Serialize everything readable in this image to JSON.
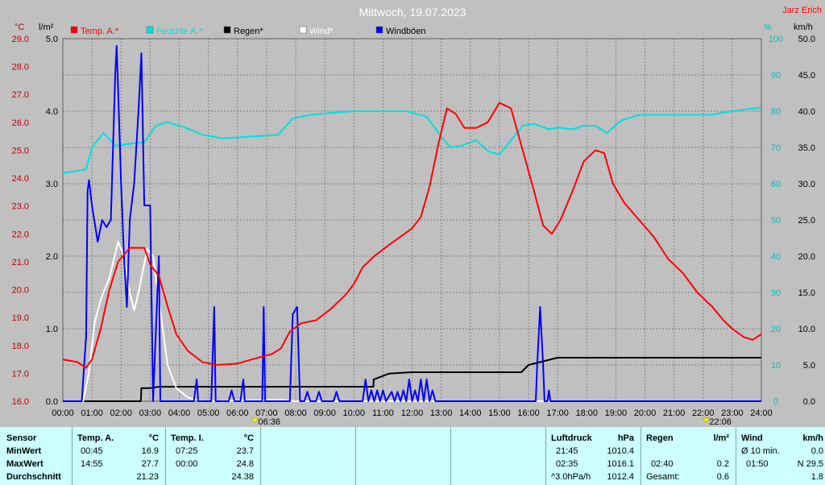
{
  "title": "Mittwoch, 19.07.2023",
  "author": "Jarz Erich",
  "colors": {
    "bg": "#c0c0c0",
    "plot_bg": "#c0c0c0",
    "grid": "#808080",
    "temp": "#ff0000",
    "feuchte": "#00e0e0",
    "regen": "#000000",
    "wind": "#ffffff",
    "boeen": "#0000ff",
    "left_axis": "#c00000",
    "right_axis": "#00c0c0"
  },
  "axis_units": {
    "left_temp": "°C",
    "left_rain": "l/m²",
    "right_hum": "%",
    "right_wind": "km/h"
  },
  "chart_data": {
    "type": "line",
    "x_unit": "hours",
    "xlim": [
      0,
      24
    ],
    "x_ticks": [
      "00:00",
      "01:00",
      "02:00",
      "03:00",
      "04:00",
      "05:00",
      "06:00",
      "07:00",
      "08:00",
      "09:00",
      "10:00",
      "11:00",
      "12:00",
      "13:00",
      "14:00",
      "15:00",
      "16:00",
      "17:00",
      "18:00",
      "19:00",
      "20:00",
      "21:00",
      "22:00",
      "23:00",
      "24:00"
    ],
    "temp_axis": {
      "range": [
        16.0,
        29.0
      ],
      "ticks": [
        "16.0",
        "17.0",
        "18.0",
        "19.0",
        "20.0",
        "21.0",
        "22.0",
        "23.0",
        "24.0",
        "25.0",
        "26.0",
        "27.0",
        "28.0",
        "29.0"
      ]
    },
    "rain_axis": {
      "range": [
        0.0,
        5.0
      ],
      "ticks": [
        "0.0",
        "1.0",
        "2.0",
        "3.0",
        "4.0",
        "5.0"
      ]
    },
    "hum_axis": {
      "range": [
        0,
        100
      ],
      "ticks": [
        "0",
        "10",
        "20",
        "30",
        "40",
        "50",
        "60",
        "70",
        "80",
        "90",
        "100"
      ]
    },
    "wind_axis": {
      "range": [
        0.0,
        50.0
      ],
      "ticks": [
        "0.0",
        "5.0",
        "10.0",
        "15.0",
        "20.0",
        "25.0",
        "30.0",
        "35.0",
        "40.0",
        "45.0",
        "50.0"
      ]
    },
    "sunrise": "06:36",
    "sunset": "22:06",
    "sunrise_h": 6.6,
    "sunset_h": 22.1,
    "series": [
      {
        "name": "Temp. A.*",
        "axis": "temp",
        "color": "#ff0000",
        "points": [
          [
            0,
            17.5
          ],
          [
            0.5,
            17.4
          ],
          [
            0.8,
            17.2
          ],
          [
            1.0,
            17.5
          ],
          [
            1.3,
            18.6
          ],
          [
            1.6,
            20.0
          ],
          [
            1.9,
            21.0
          ],
          [
            2.3,
            21.5
          ],
          [
            2.6,
            21.5
          ],
          [
            2.8,
            21.5
          ],
          [
            3.0,
            20.9
          ],
          [
            3.3,
            20.5
          ],
          [
            3.6,
            19.4
          ],
          [
            3.9,
            18.4
          ],
          [
            4.3,
            17.8
          ],
          [
            4.8,
            17.4
          ],
          [
            5.3,
            17.3
          ],
          [
            6.0,
            17.35
          ],
          [
            6.5,
            17.5
          ],
          [
            7.2,
            17.7
          ],
          [
            7.5,
            17.9
          ],
          [
            7.8,
            18.5
          ],
          [
            8.2,
            18.8
          ],
          [
            8.7,
            18.9
          ],
          [
            9.2,
            19.3
          ],
          [
            9.7,
            19.8
          ],
          [
            10.0,
            20.2
          ],
          [
            10.3,
            20.8
          ],
          [
            10.7,
            21.2
          ],
          [
            11.2,
            21.6
          ],
          [
            11.6,
            21.9
          ],
          [
            12.0,
            22.2
          ],
          [
            12.3,
            22.6
          ],
          [
            12.6,
            23.7
          ],
          [
            12.9,
            25.2
          ],
          [
            13.2,
            26.5
          ],
          [
            13.5,
            26.3
          ],
          [
            13.8,
            25.8
          ],
          [
            14.2,
            25.8
          ],
          [
            14.6,
            26.0
          ],
          [
            15.0,
            26.7
          ],
          [
            15.4,
            26.5
          ],
          [
            15.8,
            25.0
          ],
          [
            16.2,
            23.5
          ],
          [
            16.5,
            22.3
          ],
          [
            16.8,
            22.0
          ],
          [
            17.1,
            22.5
          ],
          [
            17.5,
            23.5
          ],
          [
            17.9,
            24.6
          ],
          [
            18.3,
            25.0
          ],
          [
            18.6,
            24.9
          ],
          [
            18.9,
            23.8
          ],
          [
            19.3,
            23.1
          ],
          [
            19.8,
            22.5
          ],
          [
            20.3,
            21.9
          ],
          [
            20.8,
            21.1
          ],
          [
            21.3,
            20.6
          ],
          [
            21.8,
            19.9
          ],
          [
            22.3,
            19.4
          ],
          [
            22.7,
            18.9
          ],
          [
            23.0,
            18.6
          ],
          [
            23.4,
            18.3
          ],
          [
            23.7,
            18.2
          ],
          [
            24.0,
            18.4
          ]
        ]
      },
      {
        "name": "Feuchte A.*",
        "axis": "hum",
        "color": "#00e0e0",
        "points": [
          [
            0,
            63
          ],
          [
            0.5,
            63.5
          ],
          [
            0.8,
            64
          ],
          [
            1.0,
            70
          ],
          [
            1.4,
            74
          ],
          [
            1.8,
            70.5
          ],
          [
            2.3,
            71
          ],
          [
            2.8,
            71.5
          ],
          [
            3.2,
            76
          ],
          [
            3.6,
            77
          ],
          [
            4.2,
            75.5
          ],
          [
            4.8,
            73.5
          ],
          [
            5.5,
            72.5
          ],
          [
            6.5,
            73
          ],
          [
            7.4,
            73.5
          ],
          [
            7.9,
            78
          ],
          [
            8.5,
            79
          ],
          [
            9.2,
            79.5
          ],
          [
            10.0,
            80
          ],
          [
            11.0,
            80
          ],
          [
            11.8,
            80
          ],
          [
            12.5,
            78.5
          ],
          [
            13.0,
            73
          ],
          [
            13.3,
            70
          ],
          [
            13.7,
            70.5
          ],
          [
            14.2,
            72
          ],
          [
            14.6,
            69
          ],
          [
            15.0,
            68
          ],
          [
            15.4,
            72
          ],
          [
            15.8,
            76
          ],
          [
            16.2,
            76.5
          ],
          [
            16.7,
            75
          ],
          [
            17.0,
            75.5
          ],
          [
            17.5,
            75
          ],
          [
            17.9,
            76
          ],
          [
            18.3,
            76
          ],
          [
            18.7,
            74
          ],
          [
            19.2,
            77.5
          ],
          [
            19.8,
            79
          ],
          [
            20.5,
            79
          ],
          [
            21.5,
            79
          ],
          [
            22.3,
            79
          ],
          [
            23.0,
            80
          ],
          [
            24.0,
            81
          ]
        ]
      },
      {
        "name": "Regen*",
        "axis": "rain",
        "color": "#000000",
        "points": [
          [
            0,
            0
          ],
          [
            2.68,
            0
          ],
          [
            2.7,
            0.18
          ],
          [
            3.0,
            0.18
          ],
          [
            3.3,
            0.2
          ],
          [
            4.0,
            0.2
          ],
          [
            10.67,
            0.2
          ],
          [
            10.68,
            0.3
          ],
          [
            11.2,
            0.38
          ],
          [
            12,
            0.4
          ],
          [
            15.75,
            0.4
          ],
          [
            16.0,
            0.5
          ],
          [
            16.5,
            0.55
          ],
          [
            17.0,
            0.6
          ],
          [
            24.0,
            0.6
          ]
        ]
      },
      {
        "name": "Wind*",
        "axis": "wind",
        "color": "#ffffff",
        "points": [
          [
            0,
            0
          ],
          [
            0.7,
            0
          ],
          [
            0.9,
            4
          ],
          [
            1.1,
            11
          ],
          [
            1.3,
            14
          ],
          [
            1.6,
            17
          ],
          [
            1.9,
            22
          ],
          [
            2.1,
            20
          ],
          [
            2.3,
            15
          ],
          [
            2.45,
            12.5
          ],
          [
            2.6,
            15
          ],
          [
            2.9,
            21
          ],
          [
            3.1,
            20
          ],
          [
            3.4,
            11
          ],
          [
            3.6,
            5
          ],
          [
            3.9,
            1.8
          ],
          [
            4.3,
            0.5
          ],
          [
            4.8,
            0
          ],
          [
            7.5,
            0.2
          ],
          [
            8.0,
            0
          ],
          [
            24.0,
            0
          ]
        ]
      },
      {
        "name": "Windböen",
        "axis": "wind",
        "color": "#0000ff",
        "points": [
          [
            0,
            0
          ],
          [
            0.65,
            0
          ],
          [
            0.8,
            9
          ],
          [
            0.85,
            29
          ],
          [
            0.9,
            30.5
          ],
          [
            1.0,
            27
          ],
          [
            1.2,
            22
          ],
          [
            1.35,
            25
          ],
          [
            1.5,
            24
          ],
          [
            1.65,
            25
          ],
          [
            1.8,
            45
          ],
          [
            1.85,
            49
          ],
          [
            1.9,
            43
          ],
          [
            2.0,
            30
          ],
          [
            2.1,
            20
          ],
          [
            2.2,
            13
          ],
          [
            2.3,
            25
          ],
          [
            2.45,
            30
          ],
          [
            2.6,
            40
          ],
          [
            2.7,
            48
          ],
          [
            2.8,
            27
          ],
          [
            3.0,
            27
          ],
          [
            3.1,
            0
          ],
          [
            3.3,
            20
          ],
          [
            3.35,
            0
          ],
          [
            4.5,
            0
          ],
          [
            4.6,
            3
          ],
          [
            4.65,
            0
          ],
          [
            5.1,
            0
          ],
          [
            5.2,
            13
          ],
          [
            5.25,
            0
          ],
          [
            5.7,
            0
          ],
          [
            5.8,
            1.5
          ],
          [
            5.9,
            0
          ],
          [
            6.1,
            0
          ],
          [
            6.2,
            3
          ],
          [
            6.25,
            0
          ],
          [
            6.85,
            0
          ],
          [
            6.9,
            13
          ],
          [
            6.95,
            0
          ],
          [
            7.8,
            0
          ],
          [
            7.9,
            12
          ],
          [
            8.05,
            13
          ],
          [
            8.15,
            0
          ],
          [
            8.3,
            0
          ],
          [
            8.4,
            1.3
          ],
          [
            8.5,
            0
          ],
          [
            8.7,
            0
          ],
          [
            8.8,
            1.3
          ],
          [
            8.9,
            0
          ],
          [
            9.3,
            0
          ],
          [
            9.4,
            1.3
          ],
          [
            9.5,
            0
          ],
          [
            10.3,
            0
          ],
          [
            10.4,
            3
          ],
          [
            10.5,
            0
          ],
          [
            10.6,
            1.5
          ],
          [
            10.7,
            0
          ],
          [
            10.8,
            1.5
          ],
          [
            10.9,
            0
          ],
          [
            11.0,
            1.5
          ],
          [
            11.1,
            0
          ],
          [
            11.3,
            1.3
          ],
          [
            11.4,
            0
          ],
          [
            11.5,
            1.3
          ],
          [
            11.6,
            0
          ],
          [
            11.7,
            1.5
          ],
          [
            11.8,
            0
          ],
          [
            11.9,
            3
          ],
          [
            12.0,
            0
          ],
          [
            12.1,
            1.5
          ],
          [
            12.2,
            0
          ],
          [
            12.3,
            3
          ],
          [
            12.4,
            0
          ],
          [
            12.5,
            3
          ],
          [
            12.6,
            0
          ],
          [
            12.7,
            1.5
          ],
          [
            12.8,
            0
          ],
          [
            16.25,
            0
          ],
          [
            16.3,
            5
          ],
          [
            16.4,
            13
          ],
          [
            16.5,
            5
          ],
          [
            16.55,
            0
          ],
          [
            16.65,
            0
          ],
          [
            16.7,
            1.5
          ],
          [
            16.75,
            0
          ],
          [
            24,
            0
          ]
        ]
      }
    ],
    "legend_placement": "top"
  },
  "stats": {
    "sensor": {
      "header": "Sensor",
      "rows": [
        "MinWert",
        "MaxWert",
        "Durchschnitt"
      ]
    },
    "temp_a": {
      "header": "Temp. A.",
      "unit": "°C",
      "rows": [
        [
          "00:45",
          "16.9"
        ],
        [
          "14:55",
          "27.7"
        ],
        [
          "",
          "21.23"
        ]
      ]
    },
    "temp_i": {
      "header": "Temp. I.",
      "unit": "°C",
      "rows": [
        [
          "07:25",
          "23.7"
        ],
        [
          "00:00",
          "24.8"
        ],
        [
          "",
          "24.38"
        ]
      ]
    },
    "luftdruck": {
      "header": "Luftdruck",
      "unit": "hPa",
      "rows": [
        [
          "21:45",
          "1010.4"
        ],
        [
          "02:35",
          "1016.1"
        ],
        [
          "^3.0hPa/h",
          "1012.4"
        ]
      ]
    },
    "regen": {
      "header": "Regen",
      "unit": "l/m²",
      "rows": [
        [
          "",
          ""
        ],
        [
          "02:40",
          "0.2"
        ],
        [
          "Gesamt:",
          "0.6"
        ]
      ]
    },
    "wind": {
      "header": "Wind",
      "unit": "km/h",
      "rows": [
        [
          "Ø 10 min.",
          "0.0"
        ],
        [
          "01:50",
          "N 29.5"
        ],
        [
          "",
          "1.8"
        ]
      ]
    }
  }
}
